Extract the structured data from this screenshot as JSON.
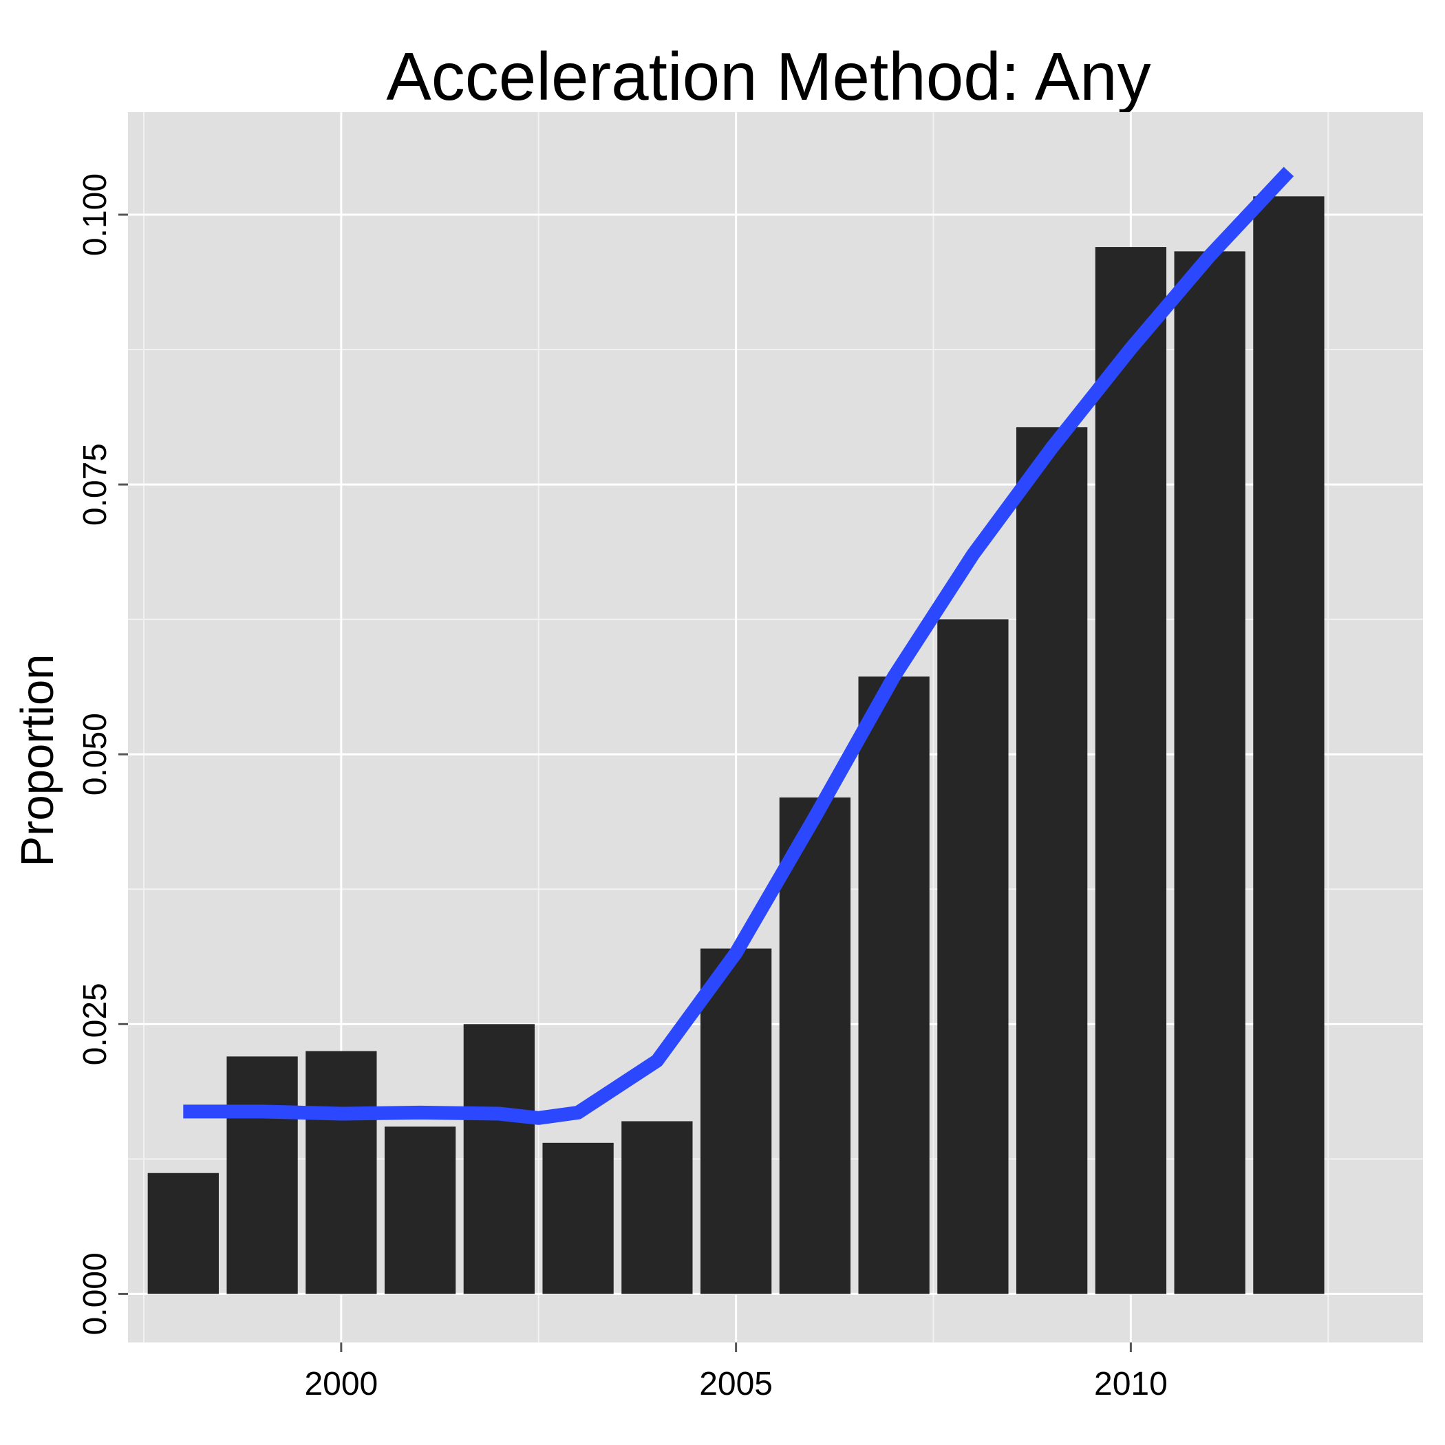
{
  "chart_data": {
    "type": "bar",
    "title": "Acceleration Method: Any",
    "xlabel": "",
    "ylabel": "Proportion",
    "x": [
      1998,
      1999,
      2000,
      2001,
      2002,
      2003,
      2004,
      2005,
      2006,
      2007,
      2008,
      2009,
      2010,
      2011,
      2012
    ],
    "values": [
      0.0112,
      0.022,
      0.0225,
      0.0155,
      0.025,
      0.014,
      0.016,
      0.032,
      0.046,
      0.0572,
      0.0625,
      0.0803,
      0.097,
      0.0966,
      0.1017
    ],
    "trend": {
      "x": [
        1998,
        1999,
        2000,
        2001,
        2002,
        2002.5,
        2003,
        2004,
        2005,
        2006,
        2007,
        2008,
        2009,
        2010,
        2011,
        2012
      ],
      "y": [
        0.0169,
        0.0169,
        0.0167,
        0.0168,
        0.0167,
        0.0163,
        0.0168,
        0.0216,
        0.0316,
        0.0442,
        0.0572,
        0.0685,
        0.0784,
        0.0876,
        0.0962,
        0.104
      ]
    },
    "xlim": [
      1997.3,
      2013.7
    ],
    "ylim": [
      -0.0045,
      0.1095
    ],
    "xticks": [
      2000,
      2005,
      2010
    ],
    "xtick_labels": [
      "2000",
      "2005",
      "2010"
    ],
    "yticks": [
      0.0,
      0.025,
      0.05,
      0.075,
      0.1
    ],
    "ytick_labels": [
      "0.000",
      "0.025",
      "0.050",
      "0.075",
      "0.100"
    ],
    "grid": true,
    "legend": "none",
    "colors": {
      "panel_background": "#e0e0e0",
      "grid_major": "#ffffff",
      "grid_minor": "#f2f2f2",
      "bar": "#262626",
      "trend_line": "#2b48ff",
      "tick": "#555555"
    }
  }
}
